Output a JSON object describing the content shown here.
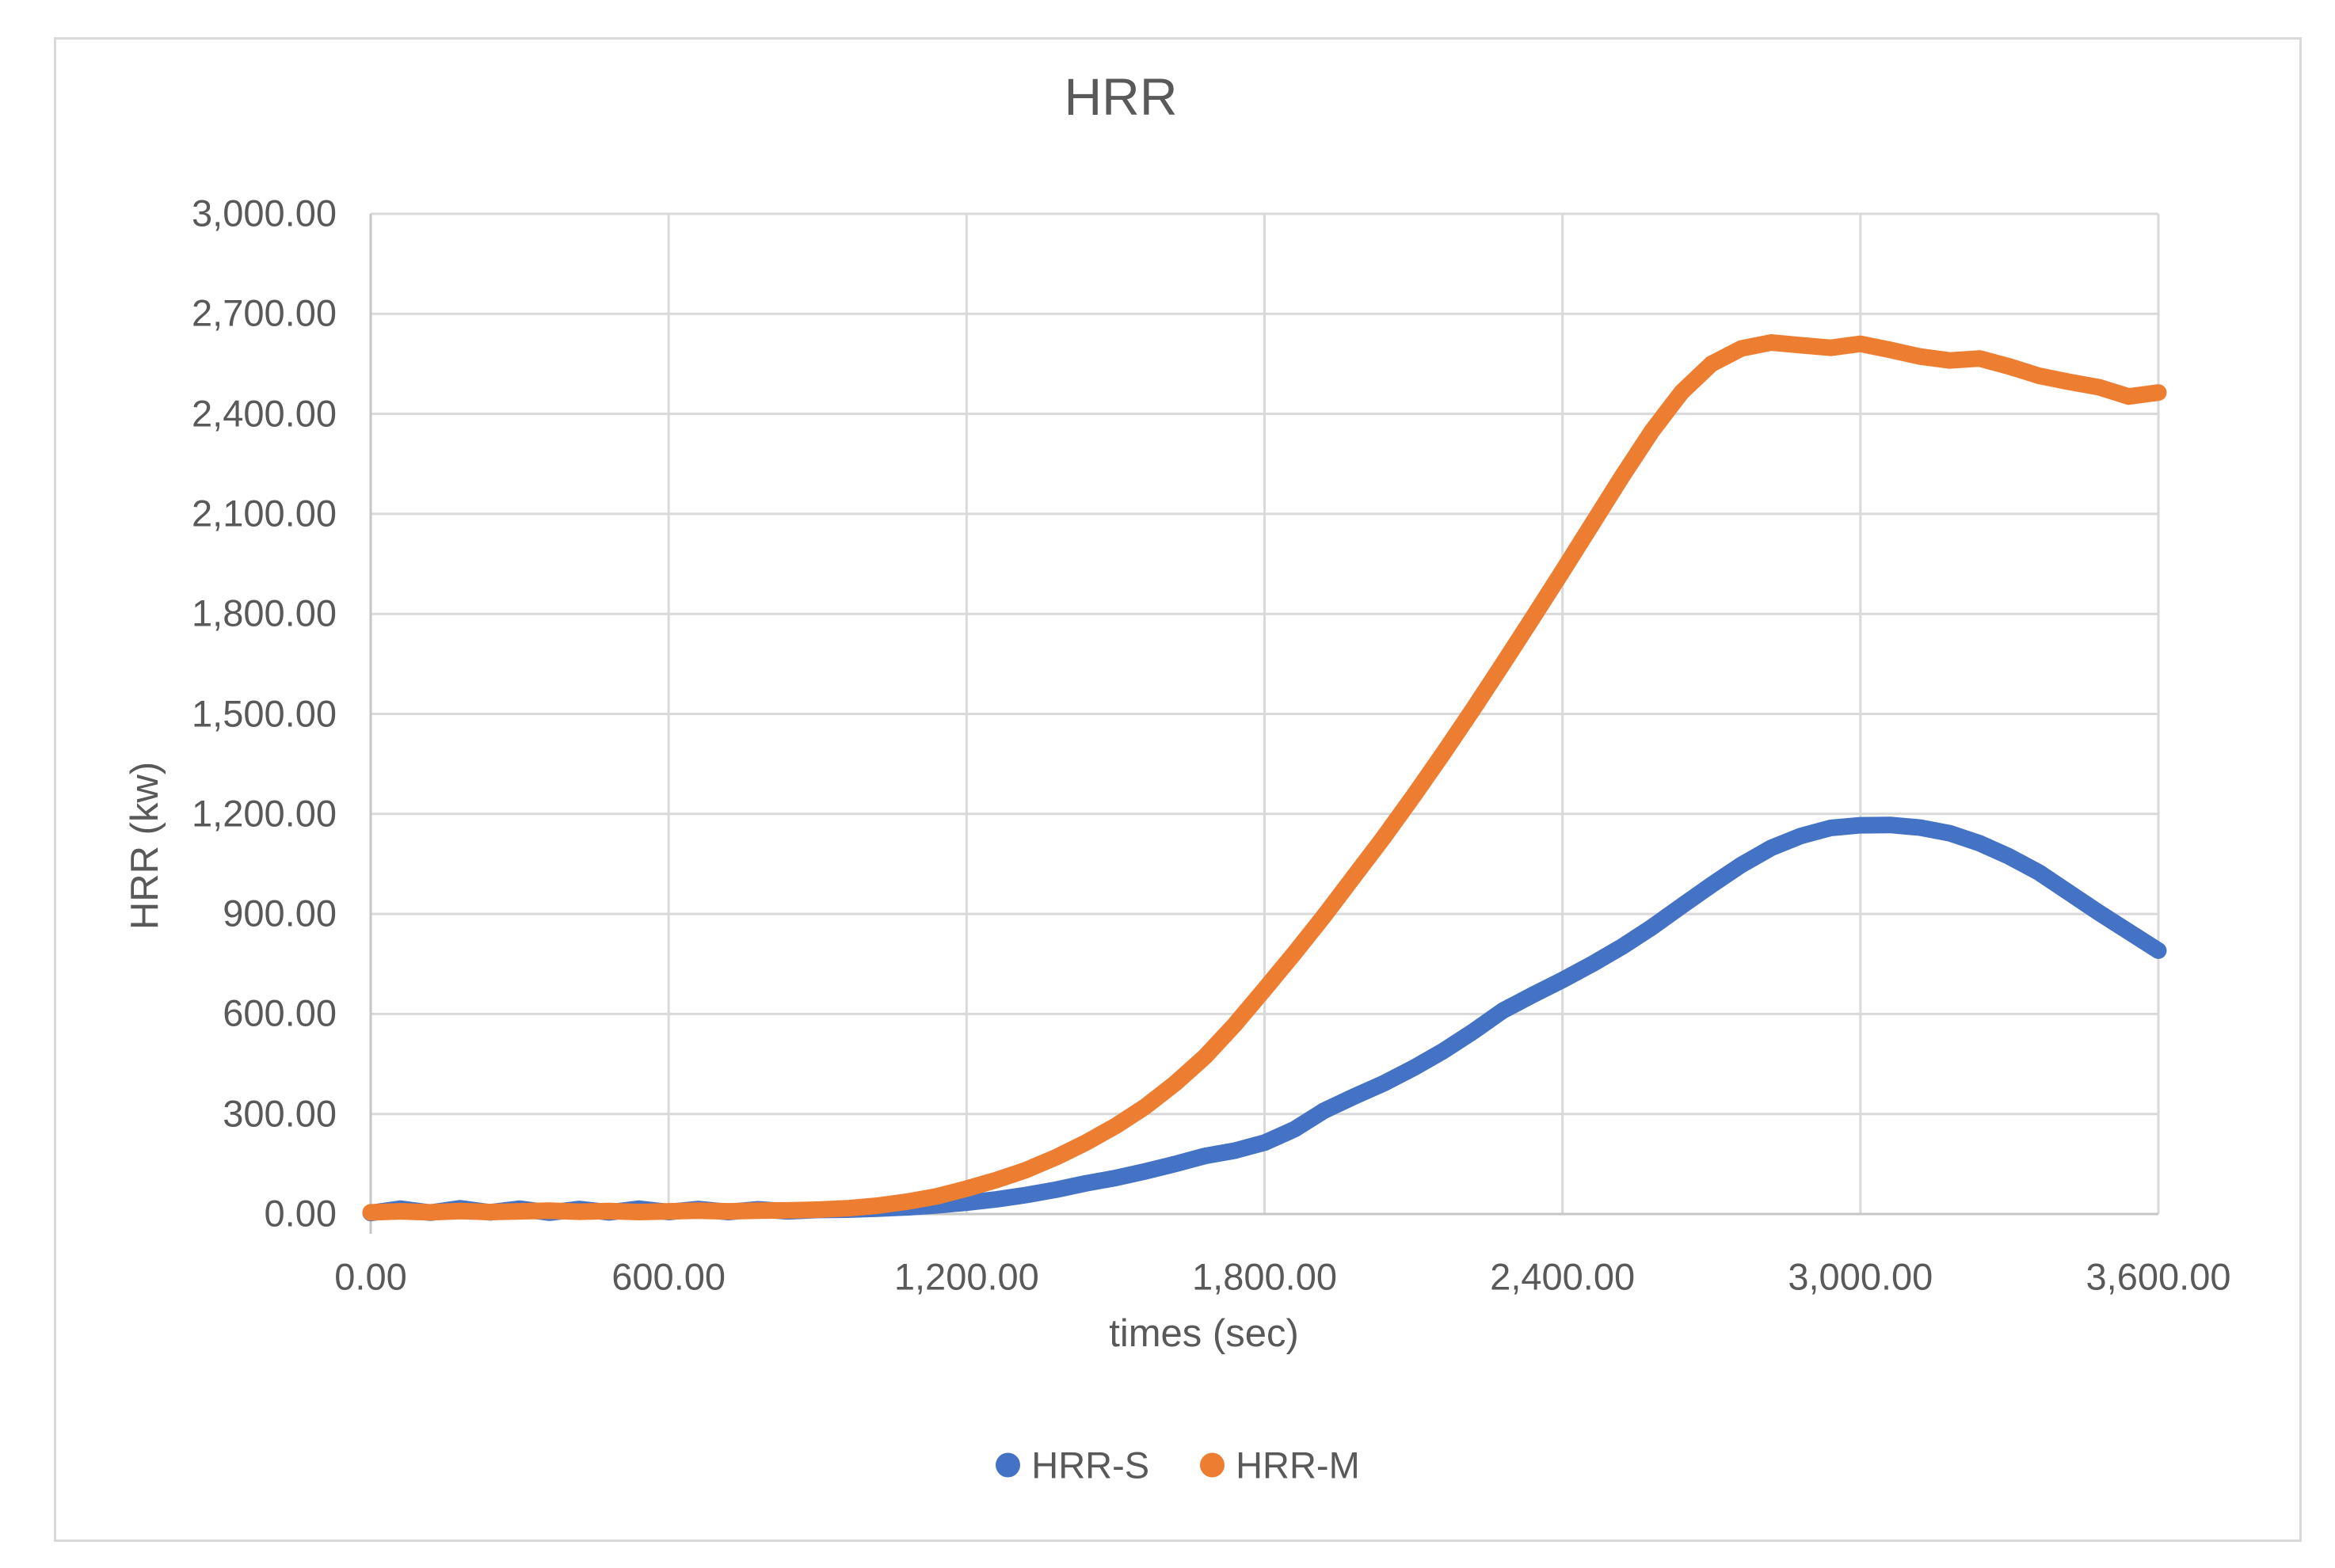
{
  "chart": {
    "title": "HRR",
    "y_axis": {
      "title": "HRR (kw)",
      "min": 0,
      "max": 3000,
      "step": 300,
      "tick_labels": [
        "0.00",
        "300.00",
        "600.00",
        "900.00",
        "1,200.00",
        "1,500.00",
        "1,800.00",
        "2,100.00",
        "2,400.00",
        "2,700.00",
        "3,000.00"
      ]
    },
    "x_axis": {
      "title": "times (sec)",
      "min": 0,
      "max": 3600,
      "step": 600,
      "tick_labels": [
        "0.00",
        "600.00",
        "1,200.00",
        "1,800.00",
        "2,400.00",
        "3,000.00",
        "3,600.00"
      ]
    },
    "legend": {
      "items": [
        {
          "label": "HRR-S",
          "color": "#4472C4"
        },
        {
          "label": "HRR-M",
          "color": "#ED7D31"
        }
      ]
    },
    "colors": {
      "grid": "#D9D9D9",
      "axis_line": "#C6C6C6",
      "text": "#595959",
      "frame_border": "#D9D9D9",
      "background": "#FFFFFF"
    }
  },
  "chart_data": {
    "type": "line",
    "title": "HRR",
    "xlabel": "times (sec)",
    "ylabel": "HRR (kw)",
    "xlim": [
      0,
      3600
    ],
    "ylim": [
      0,
      3000
    ],
    "x_ticks": [
      0,
      600,
      1200,
      1800,
      2400,
      3000,
      3600
    ],
    "y_ticks": [
      0,
      300,
      600,
      900,
      1200,
      1500,
      1800,
      2100,
      2400,
      2700,
      3000
    ],
    "grid": true,
    "legend_position": "bottom",
    "x": [
      0,
      60,
      120,
      180,
      240,
      300,
      360,
      420,
      480,
      540,
      600,
      660,
      720,
      780,
      840,
      900,
      960,
      1020,
      1080,
      1140,
      1200,
      1260,
      1320,
      1380,
      1440,
      1500,
      1560,
      1620,
      1680,
      1740,
      1800,
      1860,
      1920,
      1980,
      2040,
      2100,
      2160,
      2220,
      2280,
      2340,
      2400,
      2460,
      2520,
      2580,
      2640,
      2700,
      2760,
      2820,
      2880,
      2940,
      3000,
      3060,
      3120,
      3180,
      3240,
      3300,
      3360,
      3420,
      3480,
      3540,
      3600
    ],
    "series": [
      {
        "name": "HRR-S",
        "color": "#4472C4",
        "y": [
          3,
          16,
          4,
          17,
          5,
          16,
          4,
          15,
          5,
          16,
          6,
          15,
          6,
          14,
          8,
          12,
          13,
          16,
          20,
          26,
          34,
          44,
          57,
          73,
          92,
          108,
          128,
          150,
          174,
          190,
          214,
          254,
          310,
          352,
          392,
          438,
          489,
          547,
          610,
          657,
          702,
          750,
          802,
          860,
          924,
          987,
          1047,
          1098,
          1134,
          1158,
          1166,
          1167,
          1159,
          1142,
          1112,
          1072,
          1024,
          964,
          904,
          847,
          790
        ]
      },
      {
        "name": "HRR-M",
        "color": "#ED7D31",
        "y": [
          5,
          8,
          5,
          9,
          6,
          8,
          10,
          7,
          9,
          6,
          8,
          10,
          8,
          10,
          11,
          13,
          17,
          25,
          37,
          53,
          76,
          102,
          132,
          170,
          214,
          264,
          322,
          392,
          472,
          568,
          674,
          782,
          894,
          1012,
          1130,
          1254,
          1382,
          1514,
          1650,
          1788,
          1928,
          2070,
          2212,
          2348,
          2465,
          2550,
          2596,
          2614,
          2606,
          2598,
          2610,
          2592,
          2572,
          2560,
          2566,
          2542,
          2514,
          2496,
          2480,
          2452,
          2464
        ]
      }
    ]
  }
}
